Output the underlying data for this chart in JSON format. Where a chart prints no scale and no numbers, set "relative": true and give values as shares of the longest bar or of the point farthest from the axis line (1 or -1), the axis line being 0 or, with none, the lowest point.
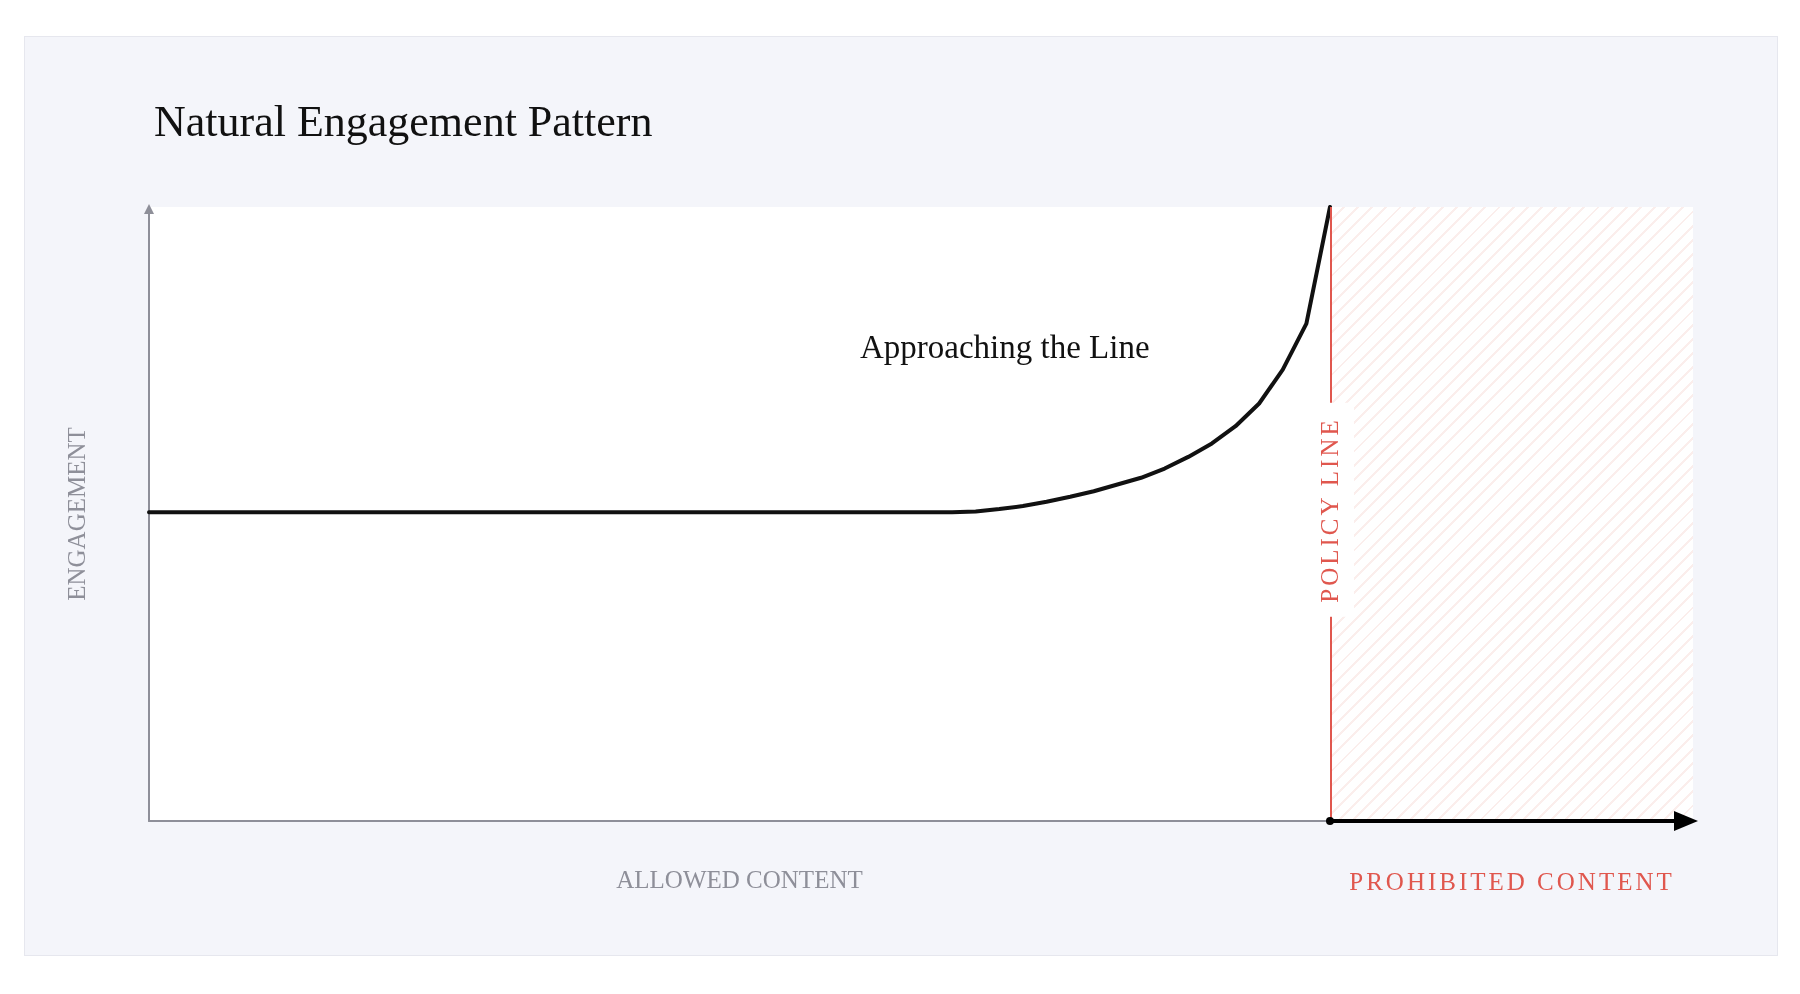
{
  "chart_data": {
    "type": "line",
    "title": "Natural Engagement Pattern",
    "xlabel": "ALLOWED CONTENT",
    "ylabel": "ENGAGEMENT",
    "relative": true,
    "tick_labels": false,
    "marker": "none",
    "line_style": "solid",
    "categories": [
      null,
      null,
      null,
      null,
      null,
      null,
      null,
      null,
      null,
      null,
      null,
      null,
      null,
      null,
      null,
      null,
      null,
      null,
      null,
      null,
      null,
      null,
      null,
      null,
      null,
      null,
      null,
      null,
      null,
      null,
      null,
      null,
      null,
      null,
      null,
      null,
      null,
      null,
      null,
      null,
      null,
      null,
      null,
      null,
      null,
      null,
      null,
      null,
      null,
      null,
      null
    ],
    "series": [
      {
        "color": "#111111",
        "values": [
          0.503,
          0.503,
          0.503,
          0.503,
          0.503,
          0.503,
          0.503,
          0.503,
          0.503,
          0.503,
          0.503,
          0.503,
          0.503,
          0.503,
          0.503,
          0.503,
          0.503,
          0.503,
          0.503,
          0.503,
          0.503,
          0.503,
          0.503,
          0.503,
          0.503,
          0.503,
          0.503,
          0.503,
          0.503,
          0.503,
          0.503,
          0.503,
          0.503,
          0.503,
          0.503,
          0.504,
          0.508,
          0.513,
          0.52,
          0.528,
          0.537,
          0.548,
          0.559,
          0.574,
          0.593,
          0.615,
          0.643,
          0.68,
          0.735,
          0.81,
          1
        ]
      }
    ],
    "annotations": [
      "Approaching the Line",
      "POLICY LINE",
      "PROHIBITED CONTENT"
    ]
  }
}
